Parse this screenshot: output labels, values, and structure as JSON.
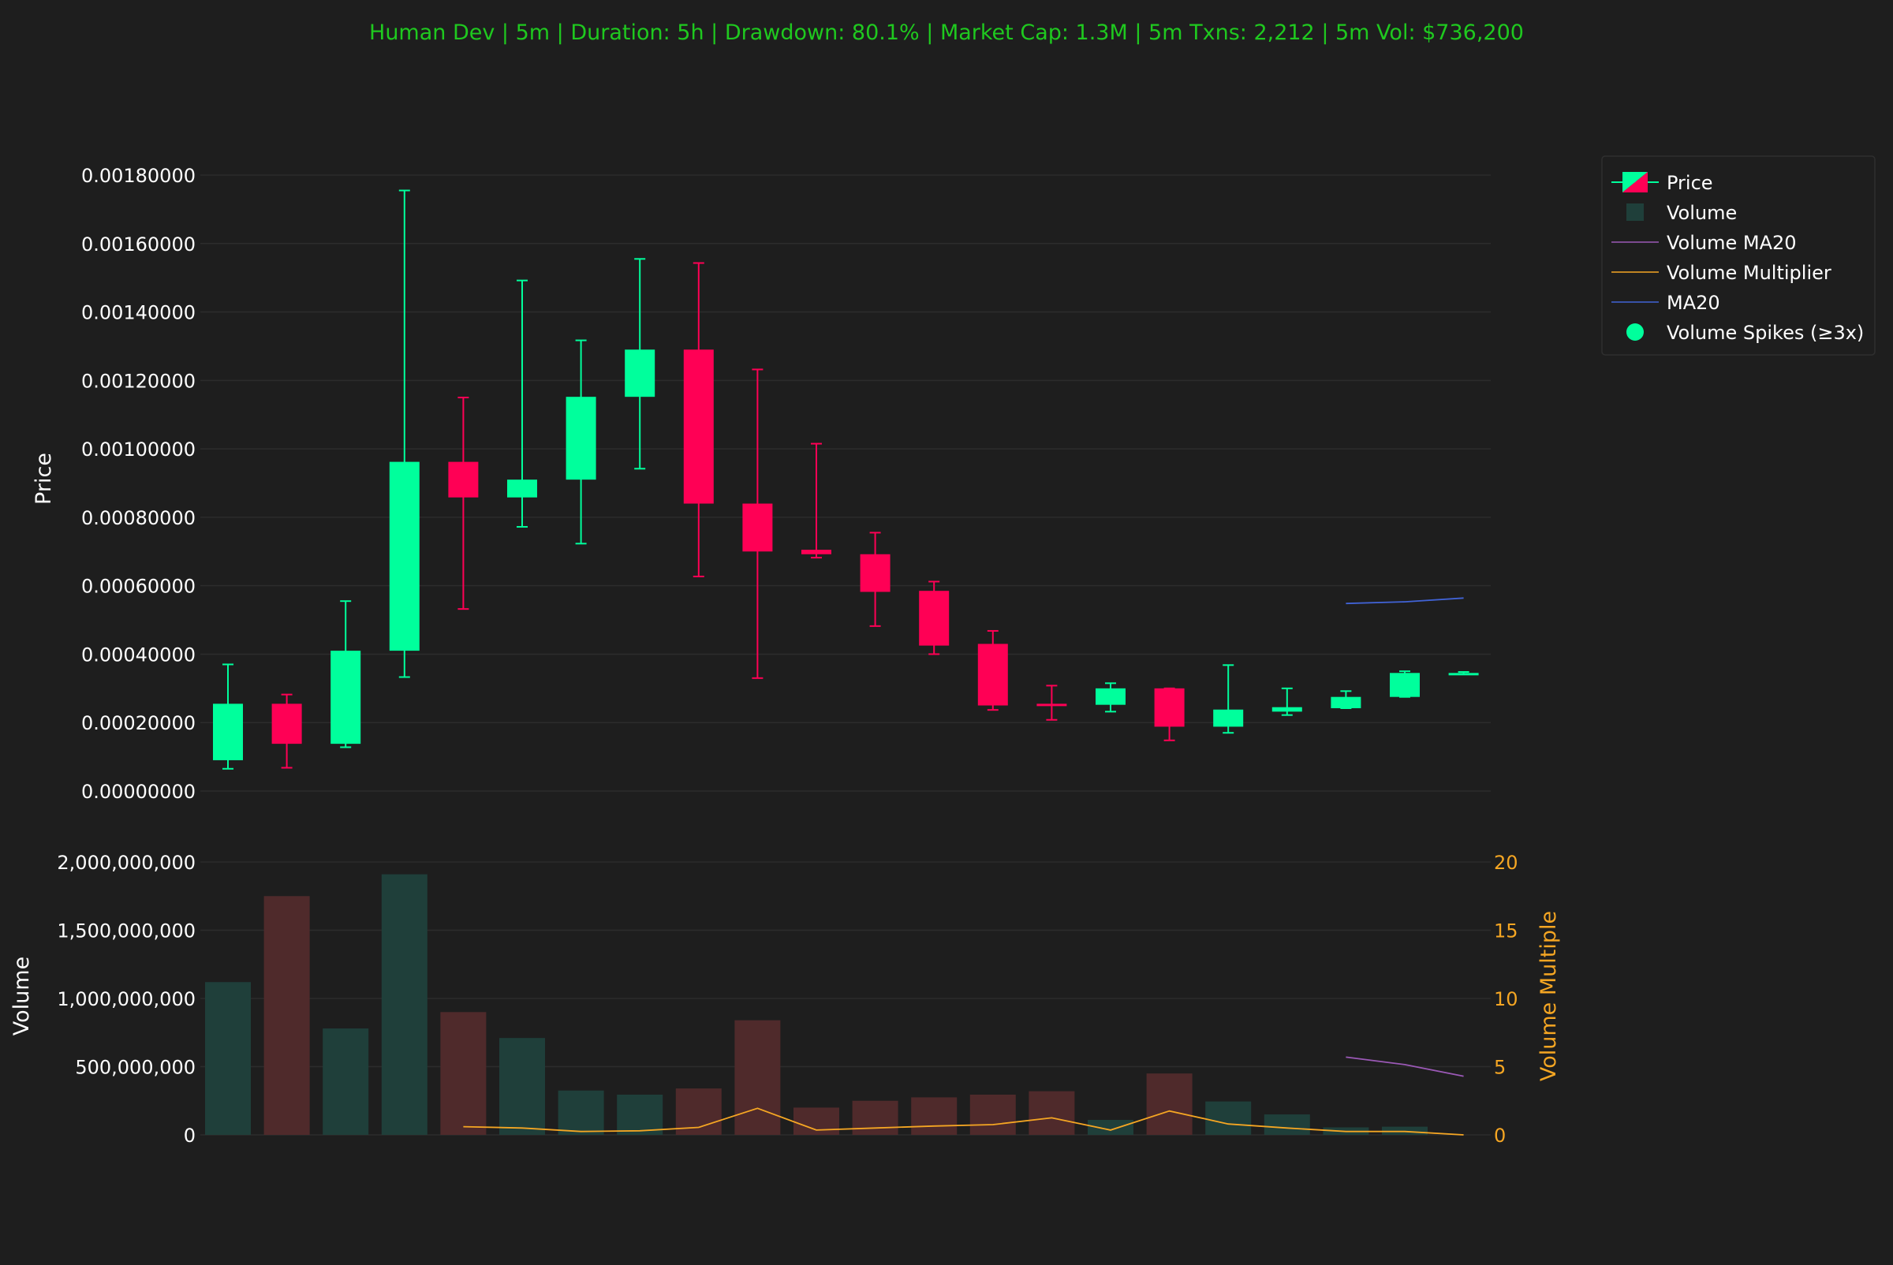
{
  "chart_data": {
    "type": "candlestick",
    "title": "Human Dev | 5m | Duration: 5h | Drawdown: 80.1% | Market Cap: 1.3M | 5m Txns: 2,212 | 5m Vol: $736,200",
    "price_axis": {
      "label": "Price",
      "ylim": [
        0,
        0.0018
      ],
      "ticks": [
        "0.00000000",
        "0.00020000",
        "0.00040000",
        "0.00060000",
        "0.00080000",
        "0.00100000",
        "0.00120000",
        "0.00140000",
        "0.00160000",
        "0.00180000"
      ],
      "tick_values": [
        0,
        0.0002,
        0.0004,
        0.0006,
        0.0008,
        0.001,
        0.0012,
        0.0014,
        0.0016,
        0.0018
      ]
    },
    "volume_axis": {
      "label": "Volume",
      "ylim": [
        0,
        2000000000
      ],
      "ticks": [
        "0",
        "500,000,000",
        "1,000,000,000",
        "1,500,000,000",
        "2,000,000,000"
      ],
      "tick_values": [
        0,
        500000000,
        1000000000,
        1500000000,
        2000000000
      ]
    },
    "multiplier_axis": {
      "label": "Volume Multiple",
      "ylim": [
        0,
        20
      ],
      "ticks": [
        "0",
        "5",
        "10",
        "15",
        "20"
      ],
      "tick_values": [
        0,
        5,
        10,
        15,
        20
      ]
    },
    "candles": [
      {
        "open": 9e-05,
        "high": 0.00037,
        "low": 6.5e-05,
        "close": 0.000255
      },
      {
        "open": 0.000255,
        "high": 0.000282,
        "low": 6.8e-05,
        "close": 0.000138
      },
      {
        "open": 0.000138,
        "high": 0.000555,
        "low": 0.000128,
        "close": 0.00041
      },
      {
        "open": 0.00041,
        "high": 0.001755,
        "low": 0.000333,
        "close": 0.000962
      },
      {
        "open": 0.000962,
        "high": 0.00115,
        "low": 0.000532,
        "close": 0.000858
      },
      {
        "open": 0.000858,
        "high": 0.001492,
        "low": 0.000772,
        "close": 0.00091
      },
      {
        "open": 0.00091,
        "high": 0.001317,
        "low": 0.000723,
        "close": 0.001152
      },
      {
        "open": 0.001152,
        "high": 0.001555,
        "low": 0.000942,
        "close": 0.00129
      },
      {
        "open": 0.00129,
        "high": 0.001543,
        "low": 0.000627,
        "close": 0.00084
      },
      {
        "open": 0.00084,
        "high": 0.001232,
        "low": 0.00033,
        "close": 0.0007
      },
      {
        "open": 0.000705,
        "high": 0.001015,
        "low": 0.000682,
        "close": 0.000692
      },
      {
        "open": 0.000692,
        "high": 0.000755,
        "low": 0.000482,
        "close": 0.000582
      },
      {
        "open": 0.000585,
        "high": 0.000612,
        "low": 0.0004,
        "close": 0.000425
      },
      {
        "open": 0.00043,
        "high": 0.000468,
        "low": 0.000237,
        "close": 0.00025
      },
      {
        "open": 0.000255,
        "high": 0.000308,
        "low": 0.000208,
        "close": 0.000252
      },
      {
        "open": 0.000252,
        "high": 0.000315,
        "low": 0.000232,
        "close": 0.0003
      },
      {
        "open": 0.0003,
        "high": 0.0003,
        "low": 0.000148,
        "close": 0.000188
      },
      {
        "open": 0.000188,
        "high": 0.000368,
        "low": 0.00017,
        "close": 0.000238
      },
      {
        "open": 0.000232,
        "high": 0.0003,
        "low": 0.000222,
        "close": 0.000245
      },
      {
        "open": 0.000242,
        "high": 0.000292,
        "low": 0.000242,
        "close": 0.000275
      },
      {
        "open": 0.000275,
        "high": 0.00035,
        "low": 0.000275,
        "close": 0.000345
      },
      {
        "open": 0.000345,
        "high": 0.000348,
        "low": 0.000342,
        "close": 0.000345
      }
    ],
    "volume": [
      1120000000,
      1750000000,
      780000000,
      1910000000,
      900000000,
      710000000,
      325000000,
      295000000,
      340000000,
      840000000,
      200000000,
      250000000,
      275000000,
      295000000,
      320000000,
      110000000,
      450000000,
      245000000,
      150000000,
      55000000,
      60000000,
      0
    ],
    "volume_multiplier": [
      null,
      null,
      null,
      null,
      0.6,
      0.5,
      0.25,
      0.3,
      0.55,
      1.95,
      0.35,
      0.5,
      0.65,
      0.75,
      1.25,
      0.35,
      1.75,
      0.8,
      0.5,
      0.25,
      0.25,
      0
    ],
    "ma20": [
      null,
      null,
      null,
      null,
      null,
      null,
      null,
      null,
      null,
      null,
      null,
      null,
      null,
      null,
      null,
      null,
      null,
      null,
      null,
      0.000548,
      0.000553,
      0.000564
    ],
    "volume_ma20": [
      null,
      null,
      null,
      null,
      null,
      null,
      null,
      null,
      null,
      null,
      null,
      null,
      null,
      null,
      null,
      null,
      null,
      null,
      null,
      570000000,
      515000000,
      430000000
    ],
    "legend": {
      "placement": "top-right",
      "items": [
        {
          "key": "price",
          "label": "Price"
        },
        {
          "key": "volume",
          "label": "Volume"
        },
        {
          "key": "volume_ma20",
          "label": "Volume MA20"
        },
        {
          "key": "volume_multiplier",
          "label": "Volume Multiplier"
        },
        {
          "key": "ma20",
          "label": "MA20"
        },
        {
          "key": "spikes",
          "label": "Volume Spikes (≥3x)"
        }
      ]
    },
    "grid": true,
    "colors": {
      "background": "#1e1e1e",
      "up": "#00ff9c",
      "down": "#ff0055",
      "volume_up": "#1f3f3a",
      "volume_down": "#4f2a2b",
      "volume_ma20": "#9b59b6",
      "volume_multiplier": "#f5a623",
      "ma20": "#4163d6",
      "title": "#1fc91f",
      "text": "#ffffff",
      "grid": "#2c2c2c"
    }
  }
}
